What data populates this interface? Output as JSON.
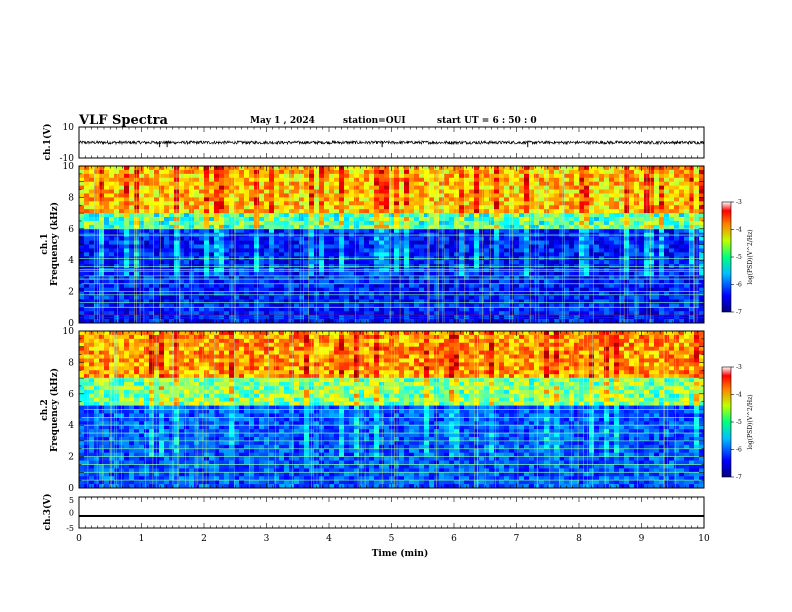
{
  "header": {
    "title": "VLF Spectra",
    "date": "May 1 , 2024",
    "station": "station=OUI",
    "start": "start UT = 6 : 50 : 0"
  },
  "chart_data": [
    {
      "type": "line",
      "ylabel": "ch.1(V)",
      "ylim": [
        -10,
        10
      ],
      "yticks": [
        "10",
        "-10"
      ],
      "xlim": [
        0,
        10
      ],
      "series": [
        {
          "baseline": 0,
          "noise_amplitude": 1,
          "spikes": [
            1.29,
            1.41,
            4.85,
            7.18
          ]
        }
      ]
    },
    {
      "type": "heatmap",
      "ylabel": "Frequency (kHz)",
      "channel_label": "ch.1",
      "ylim": [
        0,
        10
      ],
      "yticks": [
        "0",
        "2",
        "4",
        "6",
        "8",
        "10"
      ],
      "xlim": [
        0,
        10
      ],
      "colorbar": {
        "label": "log(PSD)(V^2/Hz)",
        "range": [
          -7,
          -3
        ],
        "ticks": [
          "-3",
          "-4",
          "-5",
          "-6",
          "-7"
        ]
      },
      "lines_khz": [
        0.35,
        0.5,
        1.0,
        1.3,
        1.8,
        2.0,
        2.5,
        2.8,
        3.0,
        3.3,
        3.4,
        3.6,
        4.1,
        5.6,
        6.0
      ],
      "colors": [
        "#00007f",
        "#0000ff",
        "#007fff",
        "#00ffff",
        "#7fff7f",
        "#ffff00",
        "#ff7f00",
        "#ff0000",
        "#7f0000"
      ]
    },
    {
      "type": "heatmap",
      "ylabel": "Frequency (kHz)",
      "channel_label": "ch.2",
      "ylim": [
        0,
        10
      ],
      "yticks": [
        "0",
        "2",
        "4",
        "6",
        "8",
        "10"
      ],
      "xlim": [
        0,
        10
      ],
      "colorbar": {
        "label": "log(PSD)(V^2/Hz)",
        "range": [
          -7,
          -3
        ],
        "ticks": [
          "-3",
          "-4",
          "-5",
          "-6",
          "-7"
        ]
      },
      "lines_khz": [
        0.5,
        1.0,
        1.5,
        2.0,
        2.5,
        3.0,
        3.5,
        4.0,
        4.5,
        5.0,
        5.5,
        6.5,
        7.0
      ]
    },
    {
      "type": "line",
      "ylabel": "ch.3(V)",
      "ylim": [
        -5,
        5
      ],
      "yticks": [
        "5",
        "0",
        "-5"
      ],
      "xlim": [
        0,
        10
      ],
      "xticks": [
        "0",
        "1",
        "2",
        "3",
        "4",
        "5",
        "6",
        "7",
        "8",
        "9",
        "10"
      ],
      "xlabel": "Time (min)",
      "series": [
        {
          "baseline": -1,
          "noise_amplitude": 0.2
        }
      ]
    }
  ]
}
